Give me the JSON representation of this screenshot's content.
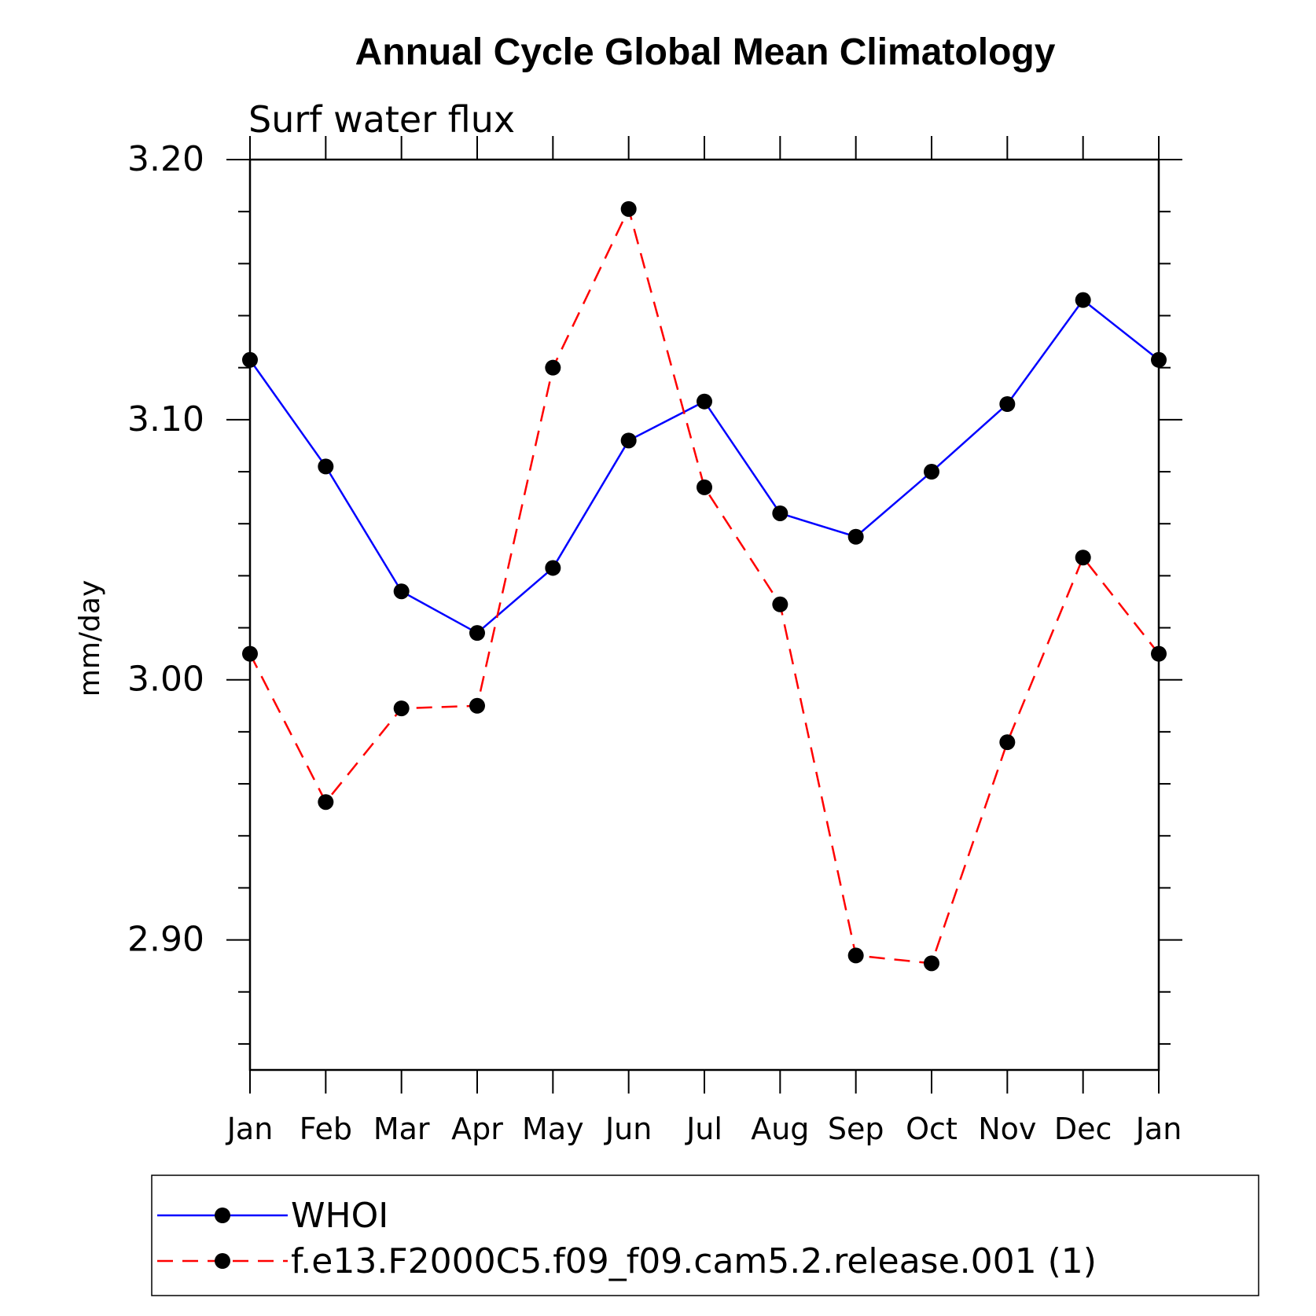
{
  "chart_data": {
    "type": "line",
    "title": "Annual Cycle Global Mean Climatology",
    "subtitle": "Surf  water  flux",
    "xlabel": "",
    "ylabel": "mm/day",
    "ylim": [
      2.85,
      3.2
    ],
    "yticks": [
      {
        "value": 3.2,
        "label": "3.20"
      },
      {
        "value": 3.1,
        "label": "3.10"
      },
      {
        "value": 3.0,
        "label": "3.00"
      },
      {
        "value": 2.9,
        "label": "2.90"
      }
    ],
    "y_minor_step": 0.02,
    "categories": [
      "Jan",
      "Feb",
      "Mar",
      "Apr",
      "May",
      "Jun",
      "Jul",
      "Aug",
      "Sep",
      "Oct",
      "Nov",
      "Dec",
      "Jan"
    ],
    "series": [
      {
        "name": "WHOI",
        "color": "#0000ff",
        "dash": "solid",
        "values": [
          3.123,
          3.082,
          3.034,
          3.018,
          3.043,
          3.092,
          3.107,
          3.064,
          3.055,
          3.08,
          3.106,
          3.146,
          3.123
        ]
      },
      {
        "name": "f.e13.F2000C5.f09_f09.cam5.2.release.001 (1)",
        "color": "#ff0000",
        "dash": "dashed",
        "values": [
          3.01,
          2.953,
          2.989,
          2.99,
          3.12,
          3.181,
          3.074,
          3.029,
          2.894,
          2.891,
          2.976,
          3.047,
          3.01
        ]
      }
    ],
    "grid": false,
    "legend_position": "bottom"
  }
}
